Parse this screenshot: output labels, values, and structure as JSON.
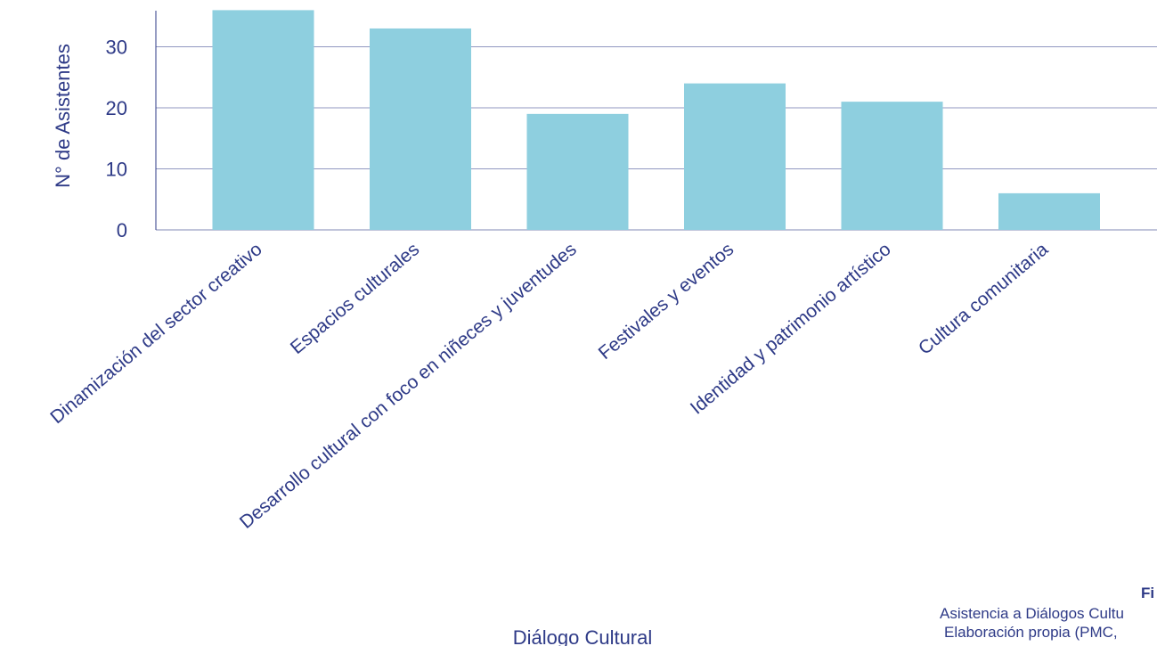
{
  "chart_data": {
    "type": "bar",
    "title": "",
    "xlabel": "Diálogo Cultural",
    "ylabel": "N° de Asistentes",
    "categories": [
      "Dinamización del sector creativo",
      "Espacios culturales",
      "Desarrollo cultural con foco en niñeces y juventudes",
      "Festivales y eventos",
      "Identidad y patrimonio artístico",
      "Cultura comunitaria"
    ],
    "values": [
      36,
      33,
      19,
      24,
      21,
      6
    ],
    "yticks": [
      "0",
      "10",
      "20",
      "30"
    ],
    "ylim": [
      0,
      36
    ],
    "grid": true,
    "bar_color": "#8ecfdf",
    "grid_color": "#2e3a87",
    "text_color": "#2e3a87"
  },
  "caption": {
    "figure_label": "Fi",
    "line1": "Asistencia a Diálogos Cultu",
    "line2": "Elaboración propia (PMC,"
  }
}
